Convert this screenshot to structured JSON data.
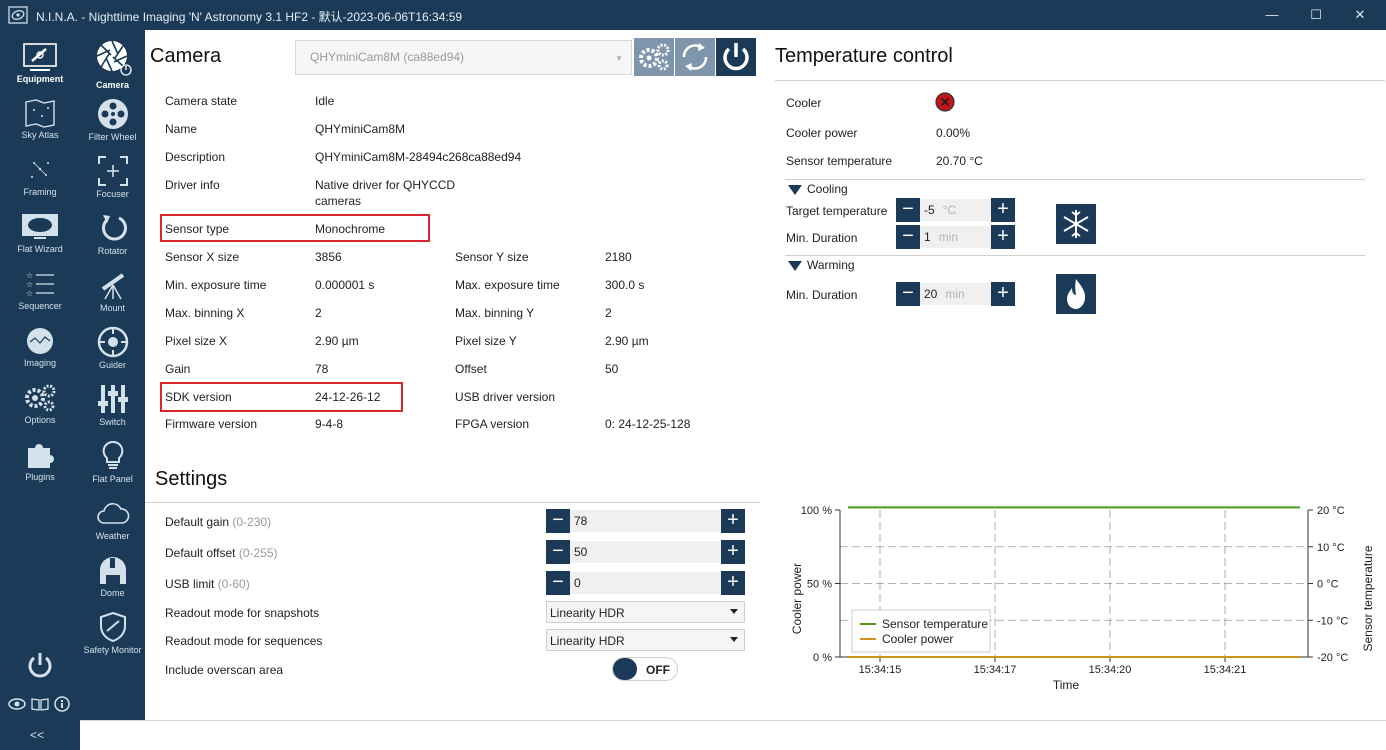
{
  "window": {
    "title": "N.I.N.A. - Nighttime Imaging 'N' Astronomy 3.1 HF2   -  默认-2023-06-06T16:34:59",
    "minimize": "—",
    "maximize": "☐",
    "close": "✕"
  },
  "nav_primary": [
    {
      "label": "Equipment",
      "icon": "telescope-equipment-icon",
      "active": true
    },
    {
      "label": "Sky Atlas",
      "icon": "sky-atlas-icon"
    },
    {
      "label": "Framing",
      "icon": "framing-icon"
    },
    {
      "label": "Flat Wizard",
      "icon": "flat-wizard-icon"
    },
    {
      "label": "Sequencer",
      "icon": "sequencer-icon"
    },
    {
      "label": "Imaging",
      "icon": "imaging-icon"
    },
    {
      "label": "Options",
      "icon": "gears-icon"
    },
    {
      "label": "Plugins",
      "icon": "puzzle-icon"
    }
  ],
  "nav_primary_footer": {
    "collapse": "<<"
  },
  "nav_equipment": [
    {
      "label": "Camera",
      "icon": "camera-shutter-icon",
      "active": true
    },
    {
      "label": "Filter Wheel",
      "icon": "filter-wheel-icon"
    },
    {
      "label": "Focuser",
      "icon": "focuser-icon"
    },
    {
      "label": "Rotator",
      "icon": "rotator-icon"
    },
    {
      "label": "Mount",
      "icon": "mount-icon"
    },
    {
      "label": "Guider",
      "icon": "guider-icon"
    },
    {
      "label": "Switch",
      "icon": "switch-icon"
    },
    {
      "label": "Flat Panel",
      "icon": "flat-panel-icon"
    },
    {
      "label": "Weather",
      "icon": "weather-cloud-icon"
    },
    {
      "label": "Dome",
      "icon": "dome-icon"
    },
    {
      "label": "Safety Monitor",
      "icon": "safety-shield-icon"
    }
  ],
  "camera": {
    "heading": "Camera",
    "selected_device": "QHYminiCam8M (ca88ed94)",
    "info": {
      "camera_state": {
        "label": "Camera state",
        "value": "Idle"
      },
      "name": {
        "label": "Name",
        "value": "QHYminiCam8M"
      },
      "description": {
        "label": "Description",
        "value": "QHYminiCam8M-28494c268ca88ed94"
      },
      "driver_info": {
        "label": "Driver info",
        "value_line1": "Native driver for QHYCCD",
        "value_line2": "cameras"
      },
      "sensor_type": {
        "label": "Sensor type",
        "value": "Monochrome"
      },
      "sensor_x": {
        "label": "Sensor X size",
        "value": "3856"
      },
      "sensor_y": {
        "label": "Sensor Y size",
        "value": "2180"
      },
      "min_exp": {
        "label": "Min. exposure time",
        "value": "0.000001 s"
      },
      "max_exp": {
        "label": "Max. exposure time",
        "value": "300.0 s"
      },
      "max_bin_x": {
        "label": "Max. binning X",
        "value": "2"
      },
      "max_bin_y": {
        "label": "Max. binning Y",
        "value": "2"
      },
      "pixel_x": {
        "label": "Pixel size X",
        "value": "2.90 µm"
      },
      "pixel_y": {
        "label": "Pixel size Y",
        "value": "2.90 µm"
      },
      "gain": {
        "label": "Gain",
        "value": "78"
      },
      "offset": {
        "label": "Offset",
        "value": "50"
      },
      "sdk": {
        "label": "SDK version",
        "value": "24-12-26-12"
      },
      "usb_driver": {
        "label": "USB driver version",
        "value": ""
      },
      "firmware": {
        "label": "Firmware version",
        "value": "9-4-8"
      },
      "fpga": {
        "label": "FPGA version",
        "value": "0: 24-12-25-128"
      }
    }
  },
  "settings": {
    "heading": "Settings",
    "default_gain": {
      "label": "Default gain",
      "range": "(0-230)",
      "value": "78"
    },
    "default_offset": {
      "label": "Default offset",
      "range": "(0-255)",
      "value": "50"
    },
    "usb_limit": {
      "label": "USB limit",
      "range": "(0-60)",
      "value": "0"
    },
    "readout_snapshots": {
      "label": "Readout mode for snapshots",
      "value": "Linearity HDR"
    },
    "readout_sequences": {
      "label": "Readout mode for sequences",
      "value": "Linearity HDR"
    },
    "overscan": {
      "label": "Include overscan area",
      "value": "OFF"
    }
  },
  "temperature": {
    "heading": "Temperature control",
    "cooler": {
      "label": "Cooler"
    },
    "cooler_power": {
      "label": "Cooler power",
      "value": "0.00%"
    },
    "sensor_temp": {
      "label": "Sensor temperature",
      "value": "20.70 °C"
    },
    "cooling": {
      "heading": "Cooling",
      "target": {
        "label": "Target temperature",
        "value": "-5",
        "unit": "°C"
      },
      "duration": {
        "label": "Min. Duration",
        "value": "1",
        "unit": "min"
      }
    },
    "warming": {
      "heading": "Warming",
      "duration": {
        "label": "Min. Duration",
        "value": "20",
        "unit": "min"
      }
    }
  },
  "chart_data": {
    "type": "line",
    "xlabel": "Time",
    "ylabel": "Cooler power",
    "y2label": "Sensor temperature",
    "x_ticks": [
      "15:34:15",
      "15:34:17",
      "15:34:20",
      "15:34:21"
    ],
    "y_ticks": [
      "100 %",
      "50 %",
      "0 %"
    ],
    "y2_ticks": [
      "20 °C",
      "10 °C",
      "0 °C",
      "-10 °C",
      "-20 °C"
    ],
    "ylim": [
      0,
      100
    ],
    "y2lim": [
      -20,
      20
    ],
    "grid": true,
    "legend_position": "bottom-left",
    "series": [
      {
        "name": "Sensor temperature",
        "color": "#4a9a1a",
        "axis": "y2",
        "values": [
          20.7,
          20.7,
          20.7,
          20.7,
          20.7
        ]
      },
      {
        "name": "Cooler power",
        "color": "#c9971a",
        "axis": "y",
        "values": [
          0,
          0,
          0,
          0,
          0
        ]
      }
    ]
  },
  "colors": {
    "nav": "#1b3a57",
    "highlight": "#d9262c",
    "cooler_off": "#c0151b"
  }
}
